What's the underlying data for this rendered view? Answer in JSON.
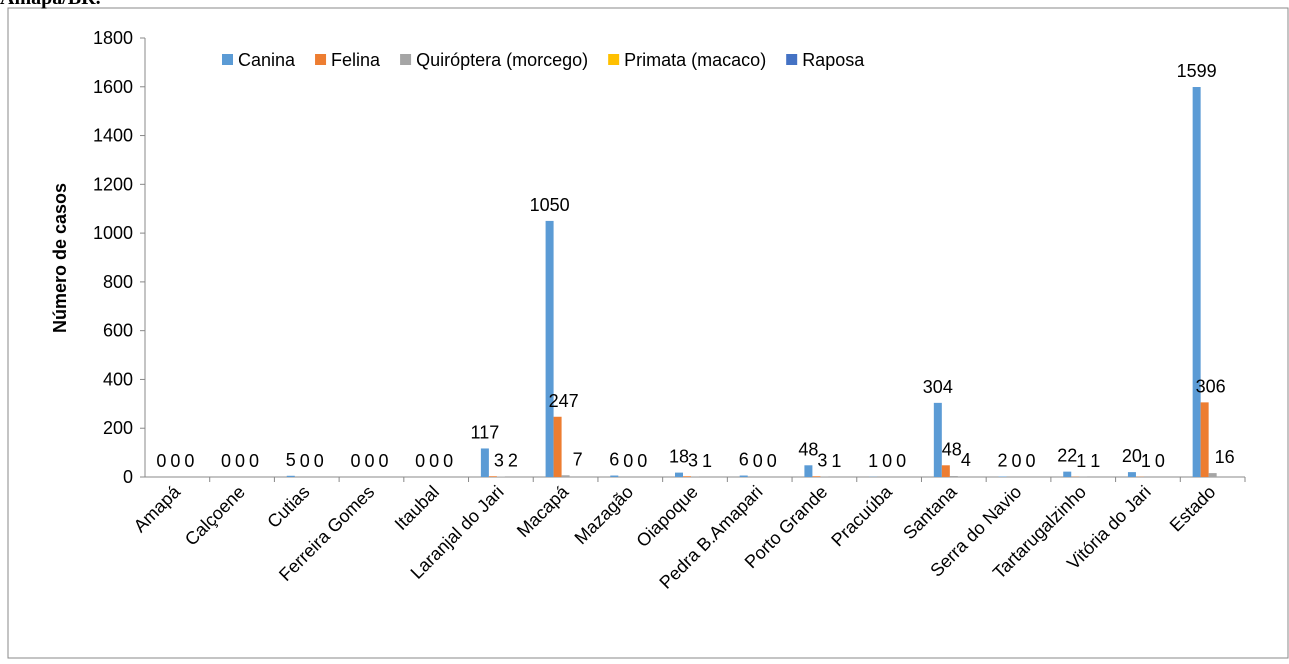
{
  "chart_data": {
    "type": "bar",
    "title": "Amapá/BR.",
    "y_label": "Número de casos",
    "categories": [
      "Amapá",
      "Calçoene",
      "Cutias",
      "Ferreira Gomes",
      "Itaubal",
      "Laranjal do Jari",
      "Macapá",
      "Mazagão",
      "Oiapoque",
      "Pedra B.Amapari",
      "Porto Grande",
      "Pracuúba",
      "Santana",
      "Serra do Navio",
      "Tartarugalzinho",
      "Vitória do Jari",
      "Estado"
    ],
    "series": [
      {
        "name": "Canina",
        "color": "#5b9bd5",
        "show_labels": true,
        "values": [
          0,
          0,
          5,
          0,
          0,
          117,
          1050,
          6,
          18,
          6,
          48,
          1,
          304,
          2,
          22,
          20,
          1599
        ]
      },
      {
        "name": "Felina",
        "color": "#ed7d31",
        "show_labels": true,
        "values": [
          0,
          0,
          0,
          0,
          0,
          3,
          247,
          0,
          3,
          0,
          3,
          0,
          48,
          0,
          1,
          1,
          306
        ]
      },
      {
        "name": "Quiróptera (morcego)",
        "color": "#a5a5a5",
        "show_labels": true,
        "values": [
          0,
          0,
          0,
          0,
          0,
          2,
          7,
          0,
          1,
          0,
          1,
          0,
          4,
          0,
          1,
          0,
          16
        ]
      },
      {
        "name": "Primata (macaco)",
        "color": "#ffc000",
        "show_labels": false,
        "values": [
          0,
          0,
          0,
          0,
          0,
          0,
          0,
          0,
          0,
          0,
          0,
          0,
          0,
          0,
          0,
          0,
          0
        ]
      },
      {
        "name": "Raposa",
        "color": "#4472c4",
        "show_labels": false,
        "values": [
          0,
          0,
          0,
          0,
          0,
          0,
          0,
          0,
          0,
          0,
          0,
          0,
          0,
          0,
          0,
          0,
          0
        ]
      }
    ],
    "ylim": [
      0,
      1800
    ],
    "yticks": [
      0,
      200,
      400,
      600,
      800,
      1000,
      1200,
      1400,
      1600,
      1800
    ],
    "grid": false,
    "legend": "top"
  }
}
